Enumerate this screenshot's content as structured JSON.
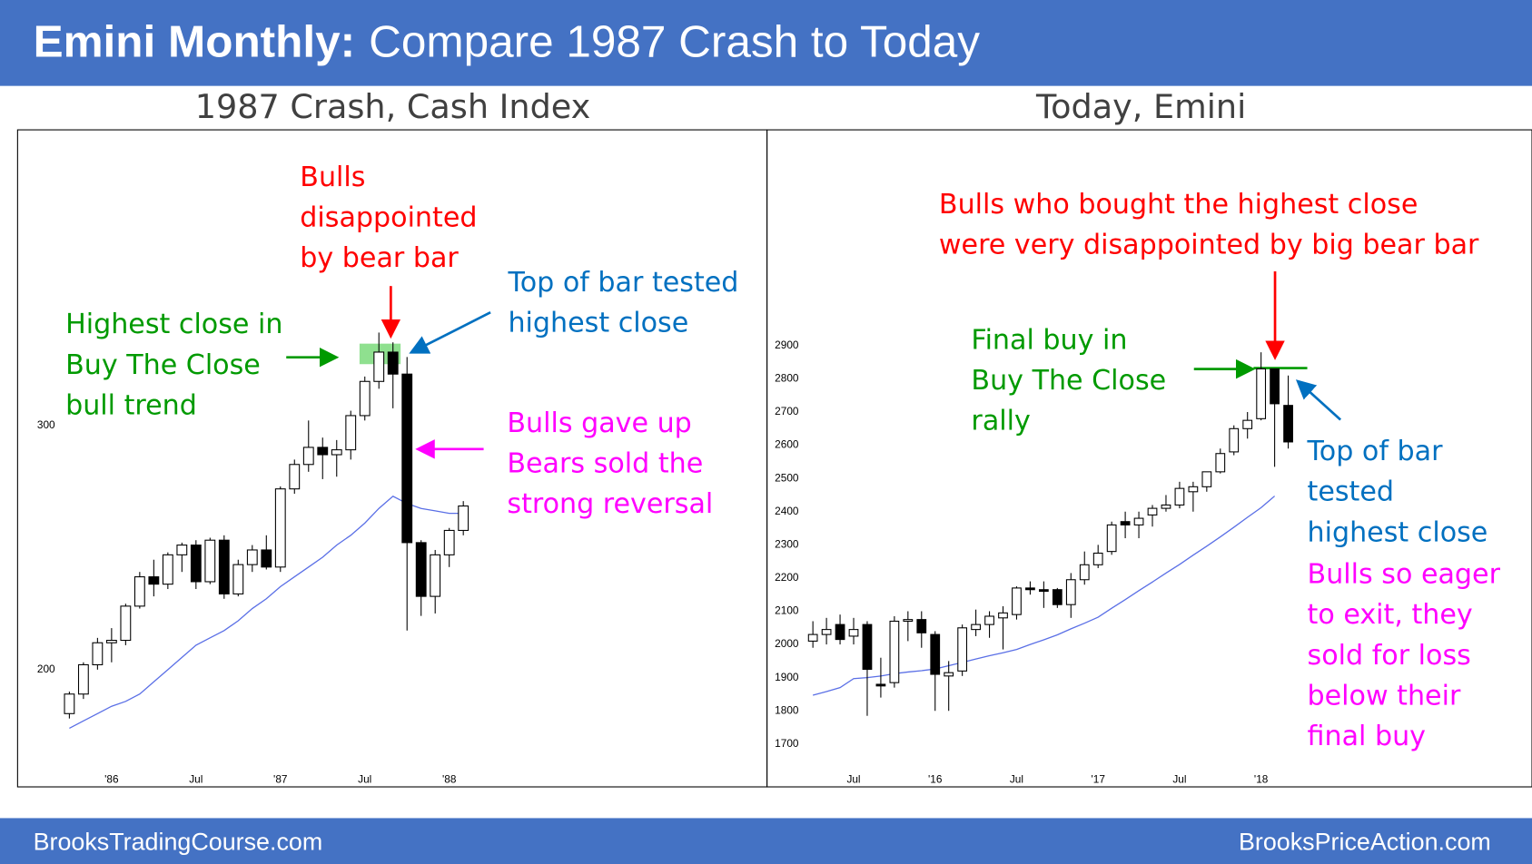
{
  "header": {
    "title_bold": "Emini Monthly:",
    "title": "Compare 1987 Crash to Today"
  },
  "footer": {
    "left": "BrooksTradingCourse.com",
    "right": "BrooksPriceAction.com"
  },
  "chart_data": [
    {
      "type": "candlestick",
      "title": "1987 Crash, Cash Index",
      "categories": [
        null,
        null,
        null,
        "'86",
        null,
        null,
        null,
        null,
        null,
        "Jul",
        null,
        null,
        null,
        null,
        null,
        "'87",
        null,
        null,
        null,
        null,
        null,
        "Jul",
        null,
        null,
        null,
        null,
        null,
        "'88",
        null
      ],
      "open": [
        182,
        190,
        202,
        211,
        212,
        226,
        238,
        235,
        247,
        251,
        236,
        253,
        231,
        243,
        249,
        242,
        274,
        284,
        291,
        288,
        290,
        304,
        318,
        330,
        321,
        252,
        230,
        247,
        257
      ],
      "high": [
        191,
        203,
        213,
        217,
        227,
        240,
        245,
        248,
        252,
        253,
        254,
        255,
        245,
        251,
        255,
        275,
        286,
        302,
        295,
        294,
        306,
        320,
        338,
        334,
        328,
        253,
        249,
        258,
        269
      ],
      "low": [
        180,
        188,
        200,
        203,
        210,
        225,
        230,
        233,
        240,
        233,
        235,
        229,
        230,
        240,
        241,
        240,
        272,
        281,
        278,
        279,
        286,
        302,
        315,
        307,
        216,
        222,
        223,
        242,
        255
      ],
      "close": [
        190,
        202,
        211,
        212,
        226,
        238,
        235,
        247,
        251,
        236,
        253,
        231,
        243,
        249,
        242,
        274,
        284,
        291,
        288,
        290,
        304,
        318,
        330,
        321,
        252,
        230,
        247,
        257,
        267
      ],
      "moving_average": {
        "color": "#5a6fe6",
        "values": [
          176,
          179,
          182,
          185,
          187,
          190,
          195,
          200,
          205,
          210,
          213,
          216,
          220,
          225,
          229,
          234,
          238,
          242,
          246,
          251,
          255,
          260,
          266,
          271,
          268,
          266,
          265,
          264,
          264
        ]
      },
      "up_color": "#ffffff",
      "down_color": "#000000",
      "ylim": [
        152,
        421
      ],
      "yticks": [
        200,
        300
      ],
      "annotations": [
        {
          "color": "#ff0000",
          "lines": [
            "Bulls",
            "disappointed",
            "by bear bar"
          ]
        },
        {
          "color": "#0070c0",
          "lines": [
            "Top of bar tested",
            "highest close"
          ]
        },
        {
          "color": "#009a00",
          "lines": [
            "Highest close in",
            "Buy The Close",
            "bull trend"
          ]
        },
        {
          "color": "#ff00ff",
          "lines": [
            "Bulls gave up",
            "Bears sold the",
            "strong reversal"
          ]
        }
      ]
    },
    {
      "type": "candlestick",
      "title": "Today, Emini",
      "categories": [
        null,
        null,
        null,
        "Jul",
        null,
        null,
        null,
        null,
        null,
        "'16",
        null,
        null,
        null,
        null,
        null,
        "Jul",
        null,
        null,
        null,
        null,
        null,
        "'17",
        null,
        null,
        null,
        null,
        null,
        "Jul",
        null,
        null,
        null,
        null,
        null,
        "'18",
        null,
        null
      ],
      "open": [
        2010,
        2030,
        2060,
        2025,
        2060,
        1880,
        1885,
        2070,
        2075,
        2030,
        1905,
        1920,
        2045,
        2060,
        2080,
        2090,
        2170,
        2165,
        2165,
        2120,
        2195,
        2240,
        2280,
        2370,
        2360,
        2390,
        2410,
        2420,
        2460,
        2475,
        2520,
        2580,
        2650,
        2680,
        2830,
        2720
      ],
      "high": [
        2070,
        2080,
        2090,
        2080,
        2070,
        1960,
        2085,
        2100,
        2100,
        2040,
        1950,
        2060,
        2105,
        2100,
        2115,
        2175,
        2190,
        2190,
        2170,
        2215,
        2280,
        2300,
        2370,
        2400,
        2400,
        2420,
        2450,
        2490,
        2490,
        2520,
        2590,
        2660,
        2700,
        2880,
        2830,
        2810
      ],
      "low": [
        1990,
        2000,
        2000,
        2000,
        1785,
        1840,
        1870,
        2010,
        1990,
        1800,
        1800,
        1905,
        2025,
        2020,
        1985,
        2075,
        2150,
        2110,
        2110,
        2080,
        2180,
        2230,
        2270,
        2320,
        2320,
        2355,
        2400,
        2410,
        2400,
        2460,
        2515,
        2570,
        2620,
        2675,
        2535,
        2590
      ],
      "close": [
        2030,
        2045,
        2015,
        2045,
        1925,
        1875,
        2070,
        2075,
        2035,
        1910,
        1915,
        2050,
        2060,
        2085,
        2095,
        2170,
        2165,
        2160,
        2120,
        2195,
        2240,
        2275,
        2360,
        2360,
        2380,
        2410,
        2420,
        2470,
        2475,
        2520,
        2575,
        2650,
        2675,
        2830,
        2725,
        2610
      ],
      "moving_average": {
        "color": "#5a6fe6",
        "values": [
          1847,
          1858,
          1870,
          1897,
          1900,
          1905,
          1912,
          1917,
          1921,
          1926,
          1936,
          1946,
          1956,
          1966,
          1975,
          1985,
          2000,
          2014,
          2029,
          2047,
          2064,
          2082,
          2109,
          2135,
          2162,
          2188,
          2215,
          2241,
          2269,
          2296,
          2324,
          2353,
          2383,
          2412,
          2447,
          null
        ]
      },
      "up_color": "#ffffff",
      "down_color": "#000000",
      "ylim": [
        1571,
        3550
      ],
      "yticks": [
        1700,
        1800,
        1900,
        2000,
        2100,
        2200,
        2300,
        2400,
        2500,
        2600,
        2700,
        2800,
        2900
      ],
      "annotations": [
        {
          "color": "#ff0000",
          "lines": [
            "Bulls who bought the highest close",
            "were very disappointed by big bear bar"
          ]
        },
        {
          "color": "#009a00",
          "lines": [
            "Final buy in",
            "Buy The Close",
            "rally"
          ]
        },
        {
          "color": "#0070c0",
          "lines": [
            "Top of bar",
            "tested",
            "highest close"
          ]
        },
        {
          "color": "#ff00ff",
          "lines": [
            "Bulls so eager",
            "to exit, they",
            "sold for loss",
            "below their",
            "final buy"
          ]
        }
      ]
    }
  ]
}
